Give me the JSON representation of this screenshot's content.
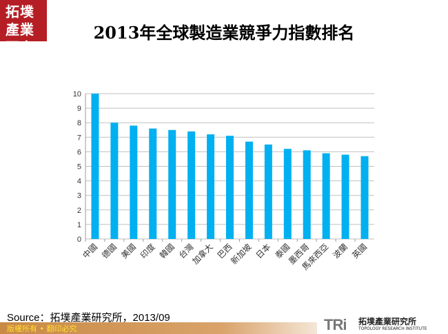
{
  "logo": {
    "text": "拓墣產業研究"
  },
  "title": "2013年全球製造業競爭力指數排名",
  "chart_data": {
    "type": "bar",
    "title": "2013年全球製造業競爭力指數排名",
    "categories": [
      "中國",
      "德國",
      "美國",
      "印度",
      "韓國",
      "台灣",
      "加拿大",
      "巴西",
      "新加坡",
      "日本",
      "泰國",
      "墨西哥",
      "馬來西亞",
      "波蘭",
      "英國"
    ],
    "values": [
      10,
      8.0,
      7.8,
      7.6,
      7.5,
      7.4,
      7.2,
      7.1,
      6.7,
      6.5,
      6.2,
      6.1,
      5.9,
      5.8,
      5.7
    ],
    "ylim": [
      0,
      10
    ],
    "yticks": [
      0,
      1,
      2,
      3,
      4,
      5,
      6,
      7,
      8,
      9,
      10
    ],
    "grid": true,
    "bar_color": "#00b0f0",
    "xlabel": "",
    "ylabel": ""
  },
  "source": "Source：拓墣產業研究所，2013/09",
  "footer": {
    "copyright": "版權所有 • 翻印必究",
    "brand": "TRi",
    "brand_cn": "拓墣產業研究所",
    "brand_en": "TOPOLOGY RESEARCH INSTITUTE"
  }
}
